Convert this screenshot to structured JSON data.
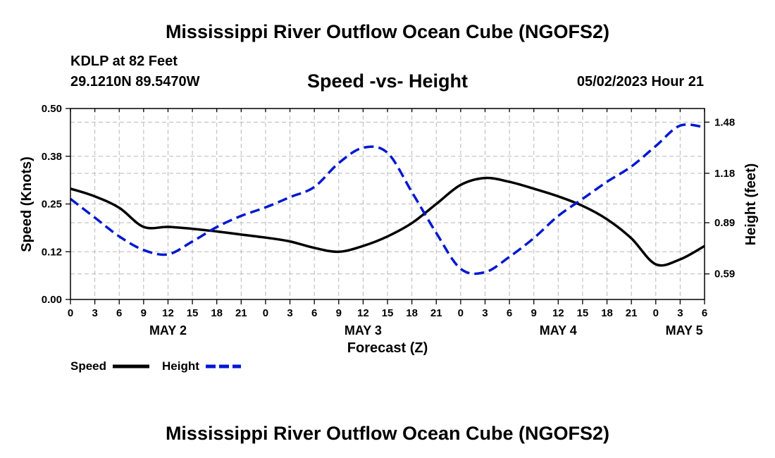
{
  "header": {
    "title": "Mississippi River Outflow Ocean Cube (NGOFS2)",
    "station": "KDLP at 82 Feet",
    "coords": "29.1210N  89.5470W",
    "subtitle": "Speed -vs- Height",
    "datetime": "05/02/2023 Hour 21",
    "footer_title": "Mississippi River Outflow Ocean Cube (NGOFS2)"
  },
  "chart_data": {
    "type": "line",
    "title": "Speed -vs- Height",
    "xlabel": "Forecast (Z)",
    "ylabel": "Speed (Knots)",
    "y2label": "Height (feet)",
    "xlim": [
      0,
      78
    ],
    "ylim": [
      0,
      0.5
    ],
    "y2lim": [
      0.44,
      1.56
    ],
    "grid": true,
    "x_ticks": [
      0,
      3,
      6,
      9,
      12,
      15,
      18,
      21,
      24,
      27,
      30,
      33,
      36,
      39,
      42,
      45,
      48,
      51,
      54,
      57,
      60,
      63,
      66,
      69,
      72,
      75,
      78
    ],
    "x_tick_labels": [
      "0",
      "3",
      "6",
      "9",
      "12",
      "15",
      "18",
      "21",
      "0",
      "3",
      "6",
      "9",
      "12",
      "15",
      "18",
      "21",
      "0",
      "3",
      "6",
      "9",
      "12",
      "15",
      "18",
      "21",
      "0",
      "3",
      "6"
    ],
    "y_ticks": [
      0,
      0.125,
      0.25,
      0.375,
      0.5
    ],
    "y_tick_labels": [
      "0.00",
      "0.12",
      "0.25",
      "0.38",
      "0.50"
    ],
    "y2_ticks": [
      0.59,
      0.89,
      1.18,
      1.48
    ],
    "y2_tick_labels": [
      "0.59",
      "0.89",
      "1.18",
      "1.48"
    ],
    "day_labels": [
      {
        "label": "MAY 2",
        "x": 12
      },
      {
        "label": "MAY 3",
        "x": 36
      },
      {
        "label": "MAY 4",
        "x": 60
      },
      {
        "label": "MAY 5",
        "x": 75.5
      }
    ],
    "series": [
      {
        "name": "Speed",
        "axis": "left",
        "color": "#000000",
        "dash": "solid",
        "x": [
          0,
          3,
          6,
          9,
          12,
          15,
          18,
          21,
          24,
          27,
          30,
          33,
          36,
          39,
          42,
          45,
          48,
          51,
          54,
          57,
          60,
          63,
          66,
          69,
          72,
          75,
          78
        ],
        "values": [
          0.29,
          0.27,
          0.24,
          0.19,
          0.19,
          0.185,
          0.178,
          0.17,
          0.162,
          0.152,
          0.135,
          0.125,
          0.14,
          0.165,
          0.2,
          0.25,
          0.3,
          0.318,
          0.308,
          0.29,
          0.27,
          0.245,
          0.21,
          0.16,
          0.092,
          0.105,
          0.14
        ]
      },
      {
        "name": "Height",
        "axis": "right",
        "color": "#0018d0",
        "dash": "dashed",
        "x": [
          0,
          3,
          6,
          9,
          12,
          15,
          18,
          21,
          24,
          27,
          30,
          33,
          36,
          39,
          42,
          45,
          48,
          51,
          54,
          57,
          60,
          63,
          66,
          69,
          72,
          75,
          78
        ],
        "values": [
          1.03,
          0.92,
          0.81,
          0.73,
          0.705,
          0.78,
          0.865,
          0.93,
          0.98,
          1.04,
          1.1,
          1.24,
          1.33,
          1.3,
          1.07,
          0.83,
          0.62,
          0.6,
          0.69,
          0.8,
          0.93,
          1.03,
          1.13,
          1.22,
          1.34,
          1.46,
          1.45
        ]
      }
    ],
    "legend": {
      "position": "bottom-left",
      "entries": [
        "Speed",
        "Height"
      ]
    }
  }
}
